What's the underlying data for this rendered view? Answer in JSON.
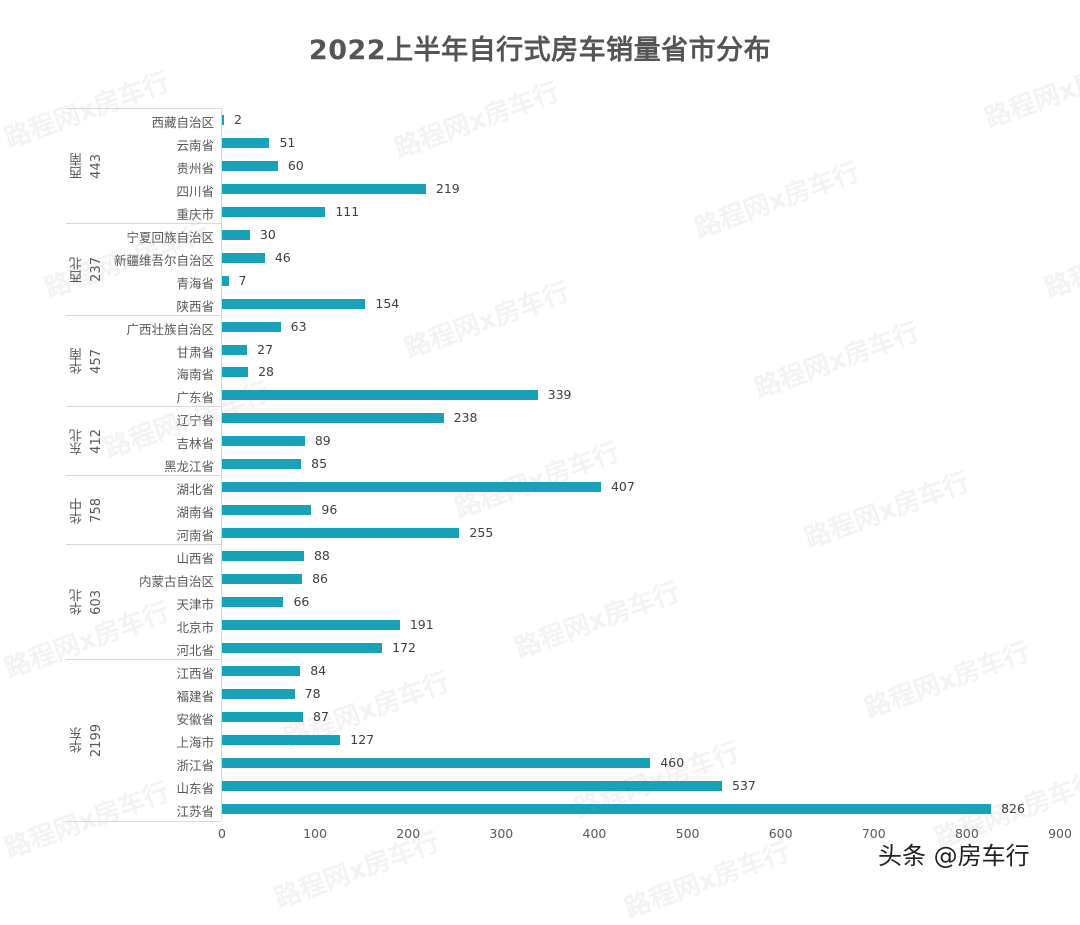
{
  "title": "2022上半年自行式房车销量省市分布",
  "watermark": "路程网x房车行",
  "credit": "头条 @房车行",
  "colors": {
    "bar": "#17a2b8",
    "title": "#555555"
  },
  "chart_data": {
    "type": "bar",
    "orientation": "horizontal",
    "title": "2022上半年自行式房车销量省市分布",
    "xlabel": "",
    "ylabel": "",
    "xlim": [
      0,
      900
    ],
    "xticks": [
      0,
      100,
      200,
      300,
      400,
      500,
      600,
      700,
      800,
      900
    ],
    "grid": false,
    "data_labels": true,
    "groups": [
      {
        "region": "西南",
        "total": 443,
        "items": [
          {
            "name": "西藏自治区",
            "value": 2
          },
          {
            "name": "云南省",
            "value": 51
          },
          {
            "name": "贵州省",
            "value": 60
          },
          {
            "name": "四川省",
            "value": 219
          },
          {
            "name": "重庆市",
            "value": 111
          }
        ]
      },
      {
        "region": "西北",
        "total": 237,
        "items": [
          {
            "name": "宁夏回族自治区",
            "value": 30
          },
          {
            "name": "新疆维吾尔自治区",
            "value": 46
          },
          {
            "name": "青海省",
            "value": 7
          },
          {
            "name": "陕西省",
            "value": 154
          }
        ]
      },
      {
        "region": "华南",
        "total": 457,
        "items": [
          {
            "name": "广西壮族自治区",
            "value": 63
          },
          {
            "name": "甘肃省",
            "value": 27
          },
          {
            "name": "海南省",
            "value": 28
          },
          {
            "name": "广东省",
            "value": 339
          }
        ]
      },
      {
        "region": "东北",
        "total": 412,
        "items": [
          {
            "name": "辽宁省",
            "value": 238
          },
          {
            "name": "吉林省",
            "value": 89
          },
          {
            "name": "黑龙江省",
            "value": 85
          }
        ]
      },
      {
        "region": "华中",
        "total": 758,
        "items": [
          {
            "name": "湖北省",
            "value": 407
          },
          {
            "name": "湖南省",
            "value": 96
          },
          {
            "name": "河南省",
            "value": 255
          }
        ]
      },
      {
        "region": "华北",
        "total": 603,
        "items": [
          {
            "name": "山西省",
            "value": 88
          },
          {
            "name": "内蒙古自治区",
            "value": 86
          },
          {
            "name": "天津市",
            "value": 66
          },
          {
            "name": "北京市",
            "value": 191
          },
          {
            "name": "河北省",
            "value": 172
          }
        ]
      },
      {
        "region": "华东",
        "total": 2199,
        "items": [
          {
            "name": "江西省",
            "value": 84
          },
          {
            "name": "福建省",
            "value": 78
          },
          {
            "name": "安徽省",
            "value": 87
          },
          {
            "name": "上海市",
            "value": 127
          },
          {
            "name": "浙江省",
            "value": 460
          },
          {
            "name": "山东省",
            "value": 537
          },
          {
            "name": "江苏省",
            "value": 826
          }
        ]
      }
    ]
  }
}
